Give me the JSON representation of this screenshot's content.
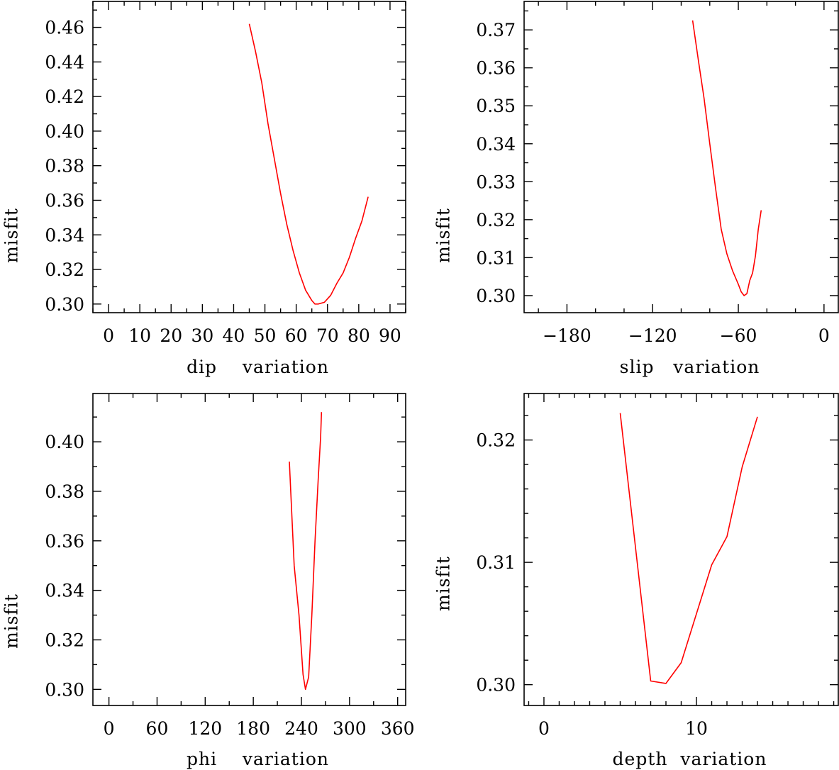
{
  "chart_data": [
    {
      "type": "line",
      "xlabel": "dip    variation",
      "ylabel": "misfit",
      "xlim": [
        -5,
        95
      ],
      "ylim": [
        0.295,
        0.475
      ],
      "x_ticks": [
        0,
        10,
        20,
        30,
        40,
        50,
        60,
        70,
        80,
        90
      ],
      "x_minor_step": 5,
      "y_ticks": [
        0.3,
        0.32,
        0.34,
        0.36,
        0.38,
        0.4,
        0.42,
        0.44,
        0.46
      ],
      "y_minor_step": 0.01,
      "y_decimals": 2,
      "grid": false,
      "series": [
        {
          "color": "#ff0000",
          "x": [
            45,
            47,
            49,
            51,
            53,
            55,
            57,
            59,
            61,
            63,
            64,
            65,
            66,
            67,
            69,
            71,
            73,
            75,
            77,
            79,
            81,
            83
          ],
          "y": [
            0.462,
            0.446,
            0.428,
            0.404,
            0.384,
            0.364,
            0.346,
            0.331,
            0.318,
            0.308,
            0.305,
            0.302,
            0.3,
            0.3,
            0.301,
            0.305,
            0.312,
            0.318,
            0.327,
            0.338,
            0.348,
            0.362
          ]
        }
      ]
    },
    {
      "type": "line",
      "xlabel": "slip   variation",
      "ylabel": "misfit",
      "xlim": [
        -210,
        10
      ],
      "ylim": [
        0.2955,
        0.3775
      ],
      "x_ticks": [
        -180,
        -120,
        -60,
        0
      ],
      "x_tick_labels": [
        "−180",
        "−120",
        "−60",
        "0"
      ],
      "x_minor_step": 20,
      "y_ticks": [
        0.3,
        0.31,
        0.32,
        0.33,
        0.34,
        0.35,
        0.36,
        0.37
      ],
      "y_minor_step": 0.005,
      "y_decimals": 2,
      "grid": false,
      "series": [
        {
          "color": "#ff0000",
          "x": [
            -92,
            -88,
            -84,
            -80,
            -76,
            -72,
            -68,
            -64,
            -60,
            -58,
            -56,
            -54,
            -52,
            -50,
            -48,
            -46,
            -44
          ],
          "y": [
            0.3725,
            0.362,
            0.352,
            0.34,
            0.3285,
            0.3175,
            0.311,
            0.3065,
            0.303,
            0.301,
            0.3,
            0.3005,
            0.304,
            0.306,
            0.3105,
            0.3175,
            0.3225
          ]
        }
      ]
    },
    {
      "type": "line",
      "xlabel": "phi    variation",
      "ylabel": "misfit",
      "xlim": [
        -20,
        370
      ],
      "ylim": [
        0.2935,
        0.4195
      ],
      "x_ticks": [
        0,
        60,
        120,
        180,
        240,
        300,
        360
      ],
      "x_minor_step": 30,
      "y_ticks": [
        0.3,
        0.32,
        0.34,
        0.36,
        0.38,
        0.4
      ],
      "y_minor_step": 0.01,
      "y_decimals": 2,
      "grid": false,
      "series": [
        {
          "color": "#ff0000",
          "x": [
            225,
            231,
            237,
            242,
            245,
            249,
            253,
            257,
            261,
            264,
            265
          ],
          "y": [
            0.392,
            0.35,
            0.33,
            0.306,
            0.3,
            0.305,
            0.33,
            0.36,
            0.385,
            0.402,
            0.412
          ]
        }
      ]
    },
    {
      "type": "line",
      "xlabel": "depth  variation",
      "ylabel": "misfit",
      "xlim": [
        -1.3,
        19.3
      ],
      "ylim": [
        0.2983,
        0.3238
      ],
      "x_ticks": [
        0,
        10
      ],
      "x_minor_step": 1,
      "y_ticks": [
        0.3,
        0.31,
        0.32
      ],
      "y_minor_step": 0.002,
      "y_decimals": 2,
      "grid": false,
      "series": [
        {
          "color": "#ff0000",
          "x": [
            5,
            7,
            8,
            9,
            10,
            11,
            12,
            13,
            14
          ],
          "y": [
            0.3222,
            0.3003,
            0.3001,
            0.3018,
            0.3058,
            0.3098,
            0.3121,
            0.3178,
            0.3219
          ]
        }
      ]
    }
  ]
}
